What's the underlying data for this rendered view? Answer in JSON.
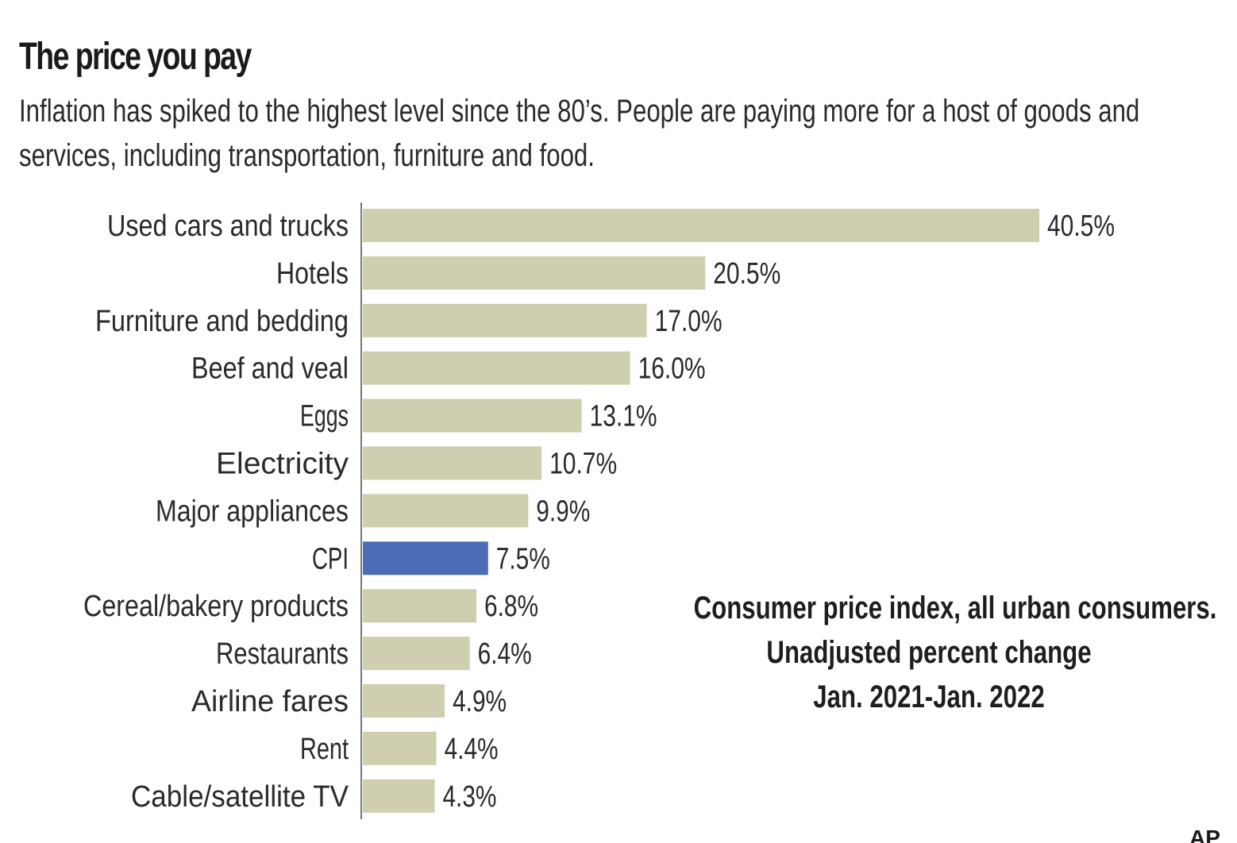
{
  "header": {
    "title": "The price you pay",
    "subtitle": "Inflation has spiked to the highest level since the 80’s. People are paying more for a host of goods and services, including transportation, furniture and food."
  },
  "note": {
    "lines": [
      "Consumer price index, all urban consumers.",
      "Unadjusted percent change",
      "Jan. 2021-Jan. 2022"
    ]
  },
  "credit": "AP",
  "colors": {
    "bar": "#cfcfb0",
    "highlight": "#4a6db5",
    "axis": "#777777",
    "text": "#2a2a2a"
  },
  "chart_data": {
    "type": "bar",
    "orientation": "horizontal",
    "title": "The price you pay",
    "subtitle": "Inflation has spiked to the highest level since the 80’s. People are paying more for a host of goods and services, including transportation, furniture and food.",
    "xlabel": "",
    "ylabel": "",
    "unit": "%",
    "xlim": [
      0,
      40.5
    ],
    "grid": false,
    "legend": "none",
    "highlight_category": "CPI",
    "categories": [
      "Used cars and trucks",
      "Hotels",
      "Furniture and bedding",
      "Beef and veal",
      "Eggs",
      "Electricity",
      "Major appliances",
      "CPI",
      "Cereal/bakery products",
      "Restaurants",
      "Airline fares",
      "Rent",
      "Cable/satellite TV"
    ],
    "values": [
      40.5,
      20.5,
      17.0,
      16.0,
      13.1,
      10.7,
      9.9,
      7.5,
      6.8,
      6.4,
      4.9,
      4.4,
      4.3
    ],
    "labels": [
      "40.5%",
      "20.5%",
      "17.0%",
      "16.0%",
      "13.1%",
      "10.7%",
      "9.9%",
      "7.5%",
      "6.8%",
      "6.4%",
      "4.9%",
      "4.4%",
      "4.3%"
    ],
    "annotation": "Consumer price index, all urban consumers. Unadjusted percent change Jan. 2021-Jan. 2022"
  }
}
